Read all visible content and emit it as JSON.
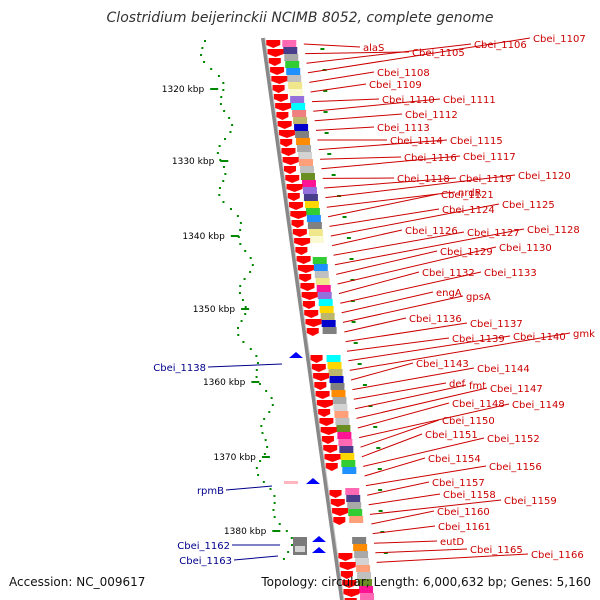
{
  "title": "Clostridium beijerinckii NCIMB 8052, complete genome",
  "footer": {
    "accession": "Accession: NC_009617",
    "topology": "Topology: circular; Length: 6,000,632 bp; Genes: 5,160"
  },
  "ticks": [
    "1320 kbp",
    "1330 kbp",
    "1340 kbp",
    "1350 kbp",
    "1360 kbp",
    "1370 kbp",
    "1380 kbp"
  ],
  "labels_right": [
    "alaS",
    "Cbei_1105",
    "Cbei_1106",
    "Cbei_1107",
    "Cbei_1108",
    "Cbei_1109",
    "Cbei_1110",
    "Cbei_1111",
    "Cbei_1112",
    "Cbei_1113",
    "Cbei_1114",
    "Cbei_1115",
    "Cbei_1116",
    "Cbei_1117",
    "Cbei_1118",
    "Cbei_1119",
    "Cbei_1120",
    "nrdR",
    "Cbei_1121",
    "Cbei_1124",
    "Cbei_1125",
    "Cbei_1126",
    "Cbei_1127",
    "Cbei_1128",
    "Cbei_1129",
    "Cbei_1130",
    "Cbei_1132",
    "Cbei_1133",
    "engA",
    "gpsA",
    "Cbei_1136",
    "Cbei_1137",
    "Cbei_1139",
    "Cbei_1140",
    "gmk",
    "Cbei_1143",
    "Cbei_1144",
    "def",
    "fmt",
    "Cbei_1147",
    "Cbei_1148",
    "Cbei_1149",
    "Cbei_1150",
    "Cbei_1151",
    "Cbei_1152",
    "Cbei_1154",
    "Cbei_1156",
    "Cbei_1157",
    "Cbei_1158",
    "Cbei_1159",
    "Cbei_1160",
    "Cbei_1161",
    "eutD",
    "Cbei_1165",
    "Cbei_1166"
  ],
  "labels_left": [
    "Cbei_1138",
    "rpmB",
    "Cbei_1162",
    "Cbei_1163"
  ],
  "colors": {
    "forward": "#ff0000",
    "reverse": "#0000ff",
    "label_forward": "#cc0000",
    "label_reverse": "#00008b",
    "gc_skew": "#008800",
    "backbone": "#888888"
  }
}
